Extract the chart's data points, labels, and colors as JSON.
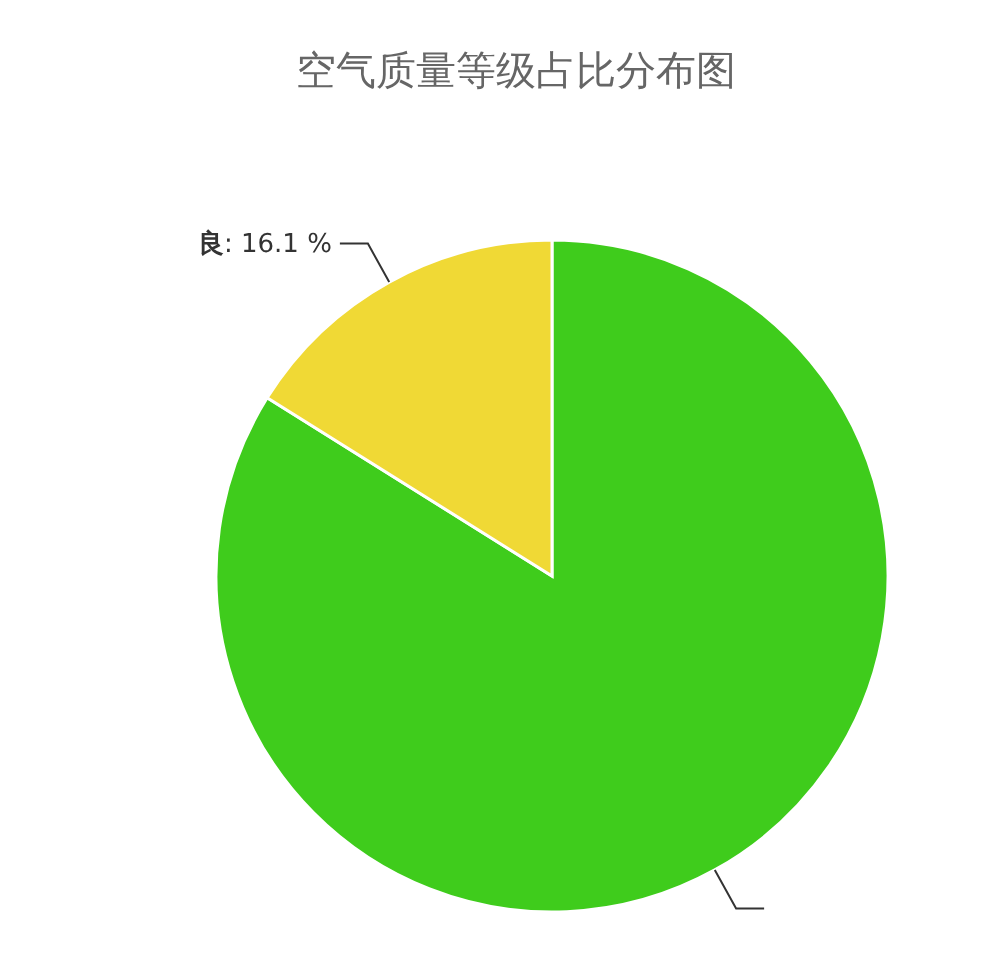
{
  "chart_data": {
    "type": "pie",
    "title": "空气质量等级占比分布图",
    "categories": [
      null,
      "良"
    ],
    "values": [
      83.9,
      16.1
    ],
    "colors": [
      "#3fcc1c",
      "#f0d935"
    ],
    "value_labels": [
      null,
      ": 16.1 %"
    ]
  }
}
